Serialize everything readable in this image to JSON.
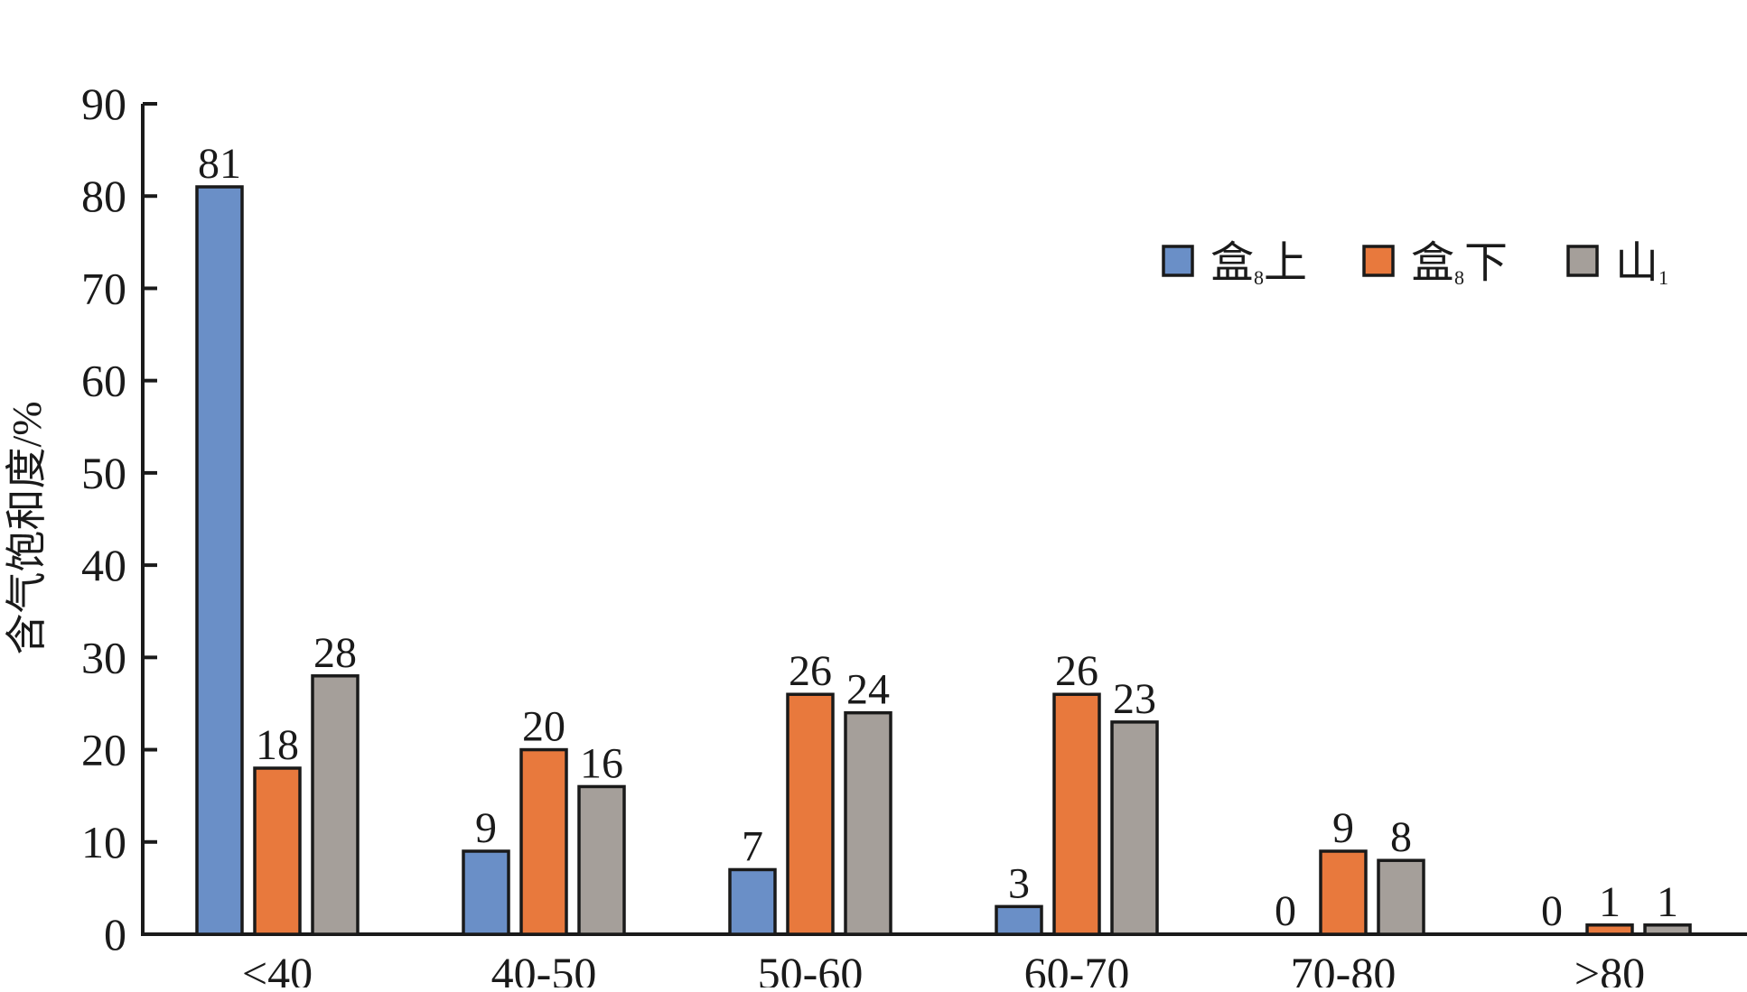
{
  "chart_data": {
    "type": "bar",
    "title": "",
    "xlabel": "",
    "ylabel": "含气饱和度/%",
    "ylim": [
      0,
      90
    ],
    "yticks": [
      0,
      10,
      20,
      30,
      40,
      50,
      60,
      70,
      80,
      90
    ],
    "grid": false,
    "legend_position": "top-right",
    "categories": [
      "<40",
      "40-50",
      "50-60",
      "60-70",
      "70-80",
      ">80"
    ],
    "series": [
      {
        "name": "盒8上",
        "name_main_1": "盒",
        "name_sub": "8",
        "name_main_2": "上",
        "color": "#6a8fc7",
        "values": [
          81,
          9,
          7,
          3,
          0,
          0
        ]
      },
      {
        "name": "盒8下",
        "name_main_1": "盒",
        "name_sub": "8",
        "name_main_2": "下",
        "color": "#e8793d",
        "values": [
          18,
          20,
          26,
          26,
          9,
          1
        ]
      },
      {
        "name": "山1",
        "name_main_1": "山",
        "name_sub": "1",
        "name_main_2": "",
        "color": "#a59f9a",
        "values": [
          28,
          16,
          24,
          23,
          8,
          1
        ]
      }
    ]
  }
}
